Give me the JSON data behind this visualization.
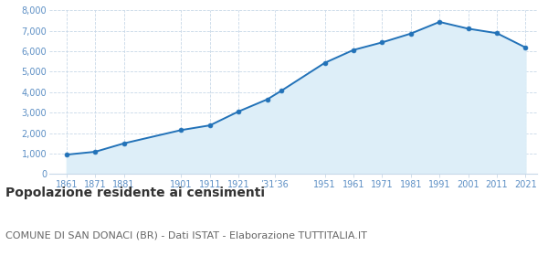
{
  "years": [
    1861,
    1871,
    1881,
    1901,
    1911,
    1921,
    1931,
    1936,
    1951,
    1961,
    1971,
    1981,
    1991,
    2001,
    2011,
    2021
  ],
  "population": [
    950,
    1090,
    1500,
    2150,
    2380,
    3060,
    3650,
    4080,
    5430,
    6060,
    6430,
    6860,
    7430,
    7100,
    6880,
    6180
  ],
  "xtick_positions": [
    1861,
    1871,
    1881,
    1901,
    1911,
    1921,
    1933.5,
    1951,
    1961,
    1971,
    1981,
    1991,
    2001,
    2011,
    2021
  ],
  "xtick_labels": [
    "1861",
    "1871",
    "1881",
    "1901",
    "1911",
    "1921",
    "’31’36",
    "1951",
    "1961",
    "1971",
    "1981",
    "1991",
    "2001",
    "2011",
    "2021"
  ],
  "ytick_values": [
    0,
    1000,
    2000,
    3000,
    4000,
    5000,
    6000,
    7000,
    8000
  ],
  "ytick_labels": [
    "0",
    "1,000",
    "2,000",
    "3,000",
    "4,000",
    "5,000",
    "6,000",
    "7,000",
    "8,000"
  ],
  "ylim": [
    0,
    8000
  ],
  "xlim_min": 1855,
  "xlim_max": 2025,
  "line_color": "#2272b8",
  "fill_color": "#ddeef8",
  "marker_color": "#2272b8",
  "grid_color": "#c8d8e8",
  "background_color": "#ffffff",
  "title": "Popolazione residente ai censimenti",
  "subtitle": "COMUNE DI SAN DONACI (BR) - Dati ISTAT - Elaborazione TUTTITALIA.IT",
  "title_fontsize": 10,
  "subtitle_fontsize": 8,
  "tick_color": "#5b8ec4",
  "tick_fontsize": 7,
  "title_color": "#333333",
  "subtitle_color": "#666666"
}
